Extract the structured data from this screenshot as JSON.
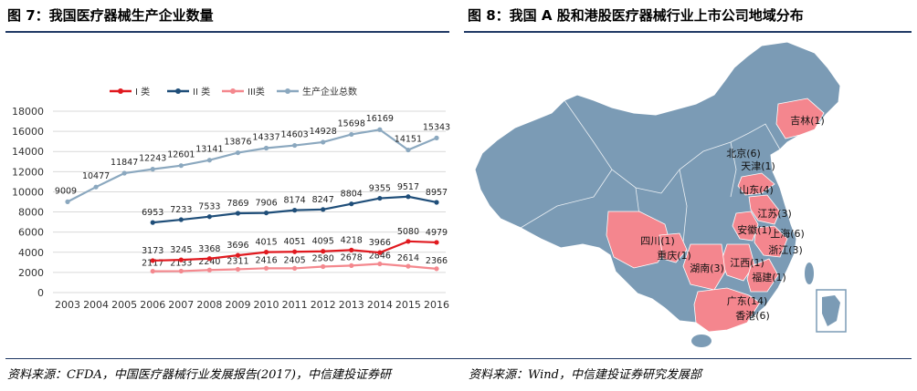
{
  "titles": {
    "left": "图 7：我国医疗器械生产企业数量",
    "right": "图 8：我国 A 股和港股医疗器械行业上市公司地域分布"
  },
  "sources": {
    "left": "资料来源：CFDA，中国医疗器械行业发展报告(2017)，中信建投证券研",
    "right": "资料来源：Wind，中信建投证券研究发展部"
  },
  "chart_data": {
    "type": "line",
    "categories": [
      "2003",
      "2004",
      "2005",
      "2006",
      "2007",
      "2008",
      "2009",
      "2010",
      "2011",
      "2012",
      "2013",
      "2014",
      "2015",
      "2016"
    ],
    "ylim": [
      0,
      18000
    ],
    "yticks": [
      0,
      2000,
      4000,
      6000,
      8000,
      10000,
      12000,
      14000,
      16000,
      18000
    ],
    "grid": true,
    "legend_position": "top",
    "series": [
      {
        "name": "I 类",
        "color": "#e0191f",
        "values": [
          null,
          null,
          null,
          3173,
          3245,
          3368,
          3696,
          4015,
          4051,
          4095,
          4218,
          3966,
          5080,
          4979
        ]
      },
      {
        "name": "II 类",
        "color": "#1f4e79",
        "values": [
          null,
          null,
          null,
          6953,
          7233,
          7533,
          7869,
          7906,
          8174,
          8247,
          8804,
          9355,
          9517,
          8957
        ]
      },
      {
        "name": "III类",
        "color": "#f4888e",
        "values": [
          null,
          null,
          null,
          2117,
          2133,
          2240,
          2311,
          2416,
          2405,
          2580,
          2678,
          2846,
          2614,
          2366
        ]
      },
      {
        "name": "生产企业总数",
        "color": "#8ba8bf",
        "values": [
          9009,
          10477,
          11847,
          12243,
          12601,
          13141,
          13876,
          14337,
          14603,
          14928,
          15698,
          16169,
          14151,
          15343
        ]
      }
    ]
  },
  "map": {
    "land_color": "#7b9bb5",
    "highlight_color": "#f4868e",
    "provinces": [
      {
        "label": "吉林(1)"
      },
      {
        "label": "北京(6)"
      },
      {
        "label": "天津(1)"
      },
      {
        "label": "山东(4)"
      },
      {
        "label": "江苏(3)"
      },
      {
        "label": "安徽(1)"
      },
      {
        "label": "上海(6)"
      },
      {
        "label": "浙江(3)"
      },
      {
        "label": "四川(1)"
      },
      {
        "label": "重庆(1)"
      },
      {
        "label": "湖南(3)"
      },
      {
        "label": "江西(1)"
      },
      {
        "label": "福建(1)"
      },
      {
        "label": "广东(14)"
      },
      {
        "label": "香港(6)"
      }
    ]
  }
}
